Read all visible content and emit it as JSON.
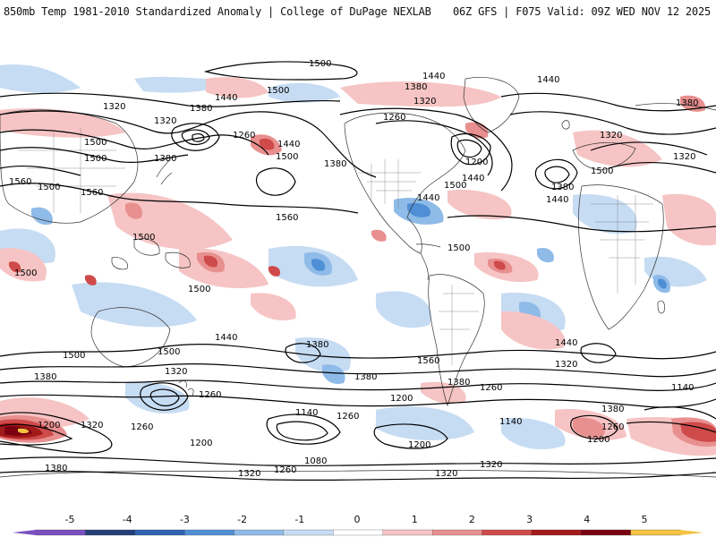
{
  "header": {
    "title": "850mb Temp 1981-2010 Standardized Anomaly | College of DuPage NEXLAB",
    "run_info": "06Z GFS | F075 Valid: 09Z WED NOV 12 2025"
  },
  "colorbar": {
    "ticks": [
      "-5",
      "-4",
      "-3",
      "-2",
      "-1",
      "0",
      "1",
      "2",
      "3",
      "4",
      "5"
    ],
    "colors": [
      "#7a4fc0",
      "#243f7a",
      "#2e63b3",
      "#4f8fd6",
      "#8fbbe8",
      "#c6dcf3",
      "#ffffff",
      "#f6c4c4",
      "#e88f8f",
      "#cf4a4a",
      "#a31a1a",
      "#7a0010",
      "#f5c242"
    ]
  },
  "contour_labels": [
    "1500",
    "1440",
    "1380",
    "1320",
    "1500",
    "1440",
    "1380",
    "1320",
    "1260",
    "1440",
    "1320",
    "1380",
    "1500",
    "1320",
    "1260",
    "1440",
    "1500",
    "1380",
    "1560",
    "1500",
    "1560",
    "1500",
    "1560",
    "1200",
    "1380",
    "1500",
    "1440",
    "1500",
    "1380",
    "1440",
    "1320",
    "1500",
    "1500",
    "1500",
    "1440",
    "1380",
    "1560",
    "1500",
    "1440",
    "1320",
    "1380",
    "1320",
    "1260",
    "1500",
    "1380",
    "1200",
    "1260",
    "1380",
    "1140",
    "1260",
    "1200",
    "1140",
    "1200",
    "1080",
    "1320",
    "1260",
    "1320",
    "1260",
    "1200",
    "1380",
    "1140",
    "1260",
    "1200",
    "1320",
    "1500",
    "1440",
    "1320",
    "1380"
  ]
}
